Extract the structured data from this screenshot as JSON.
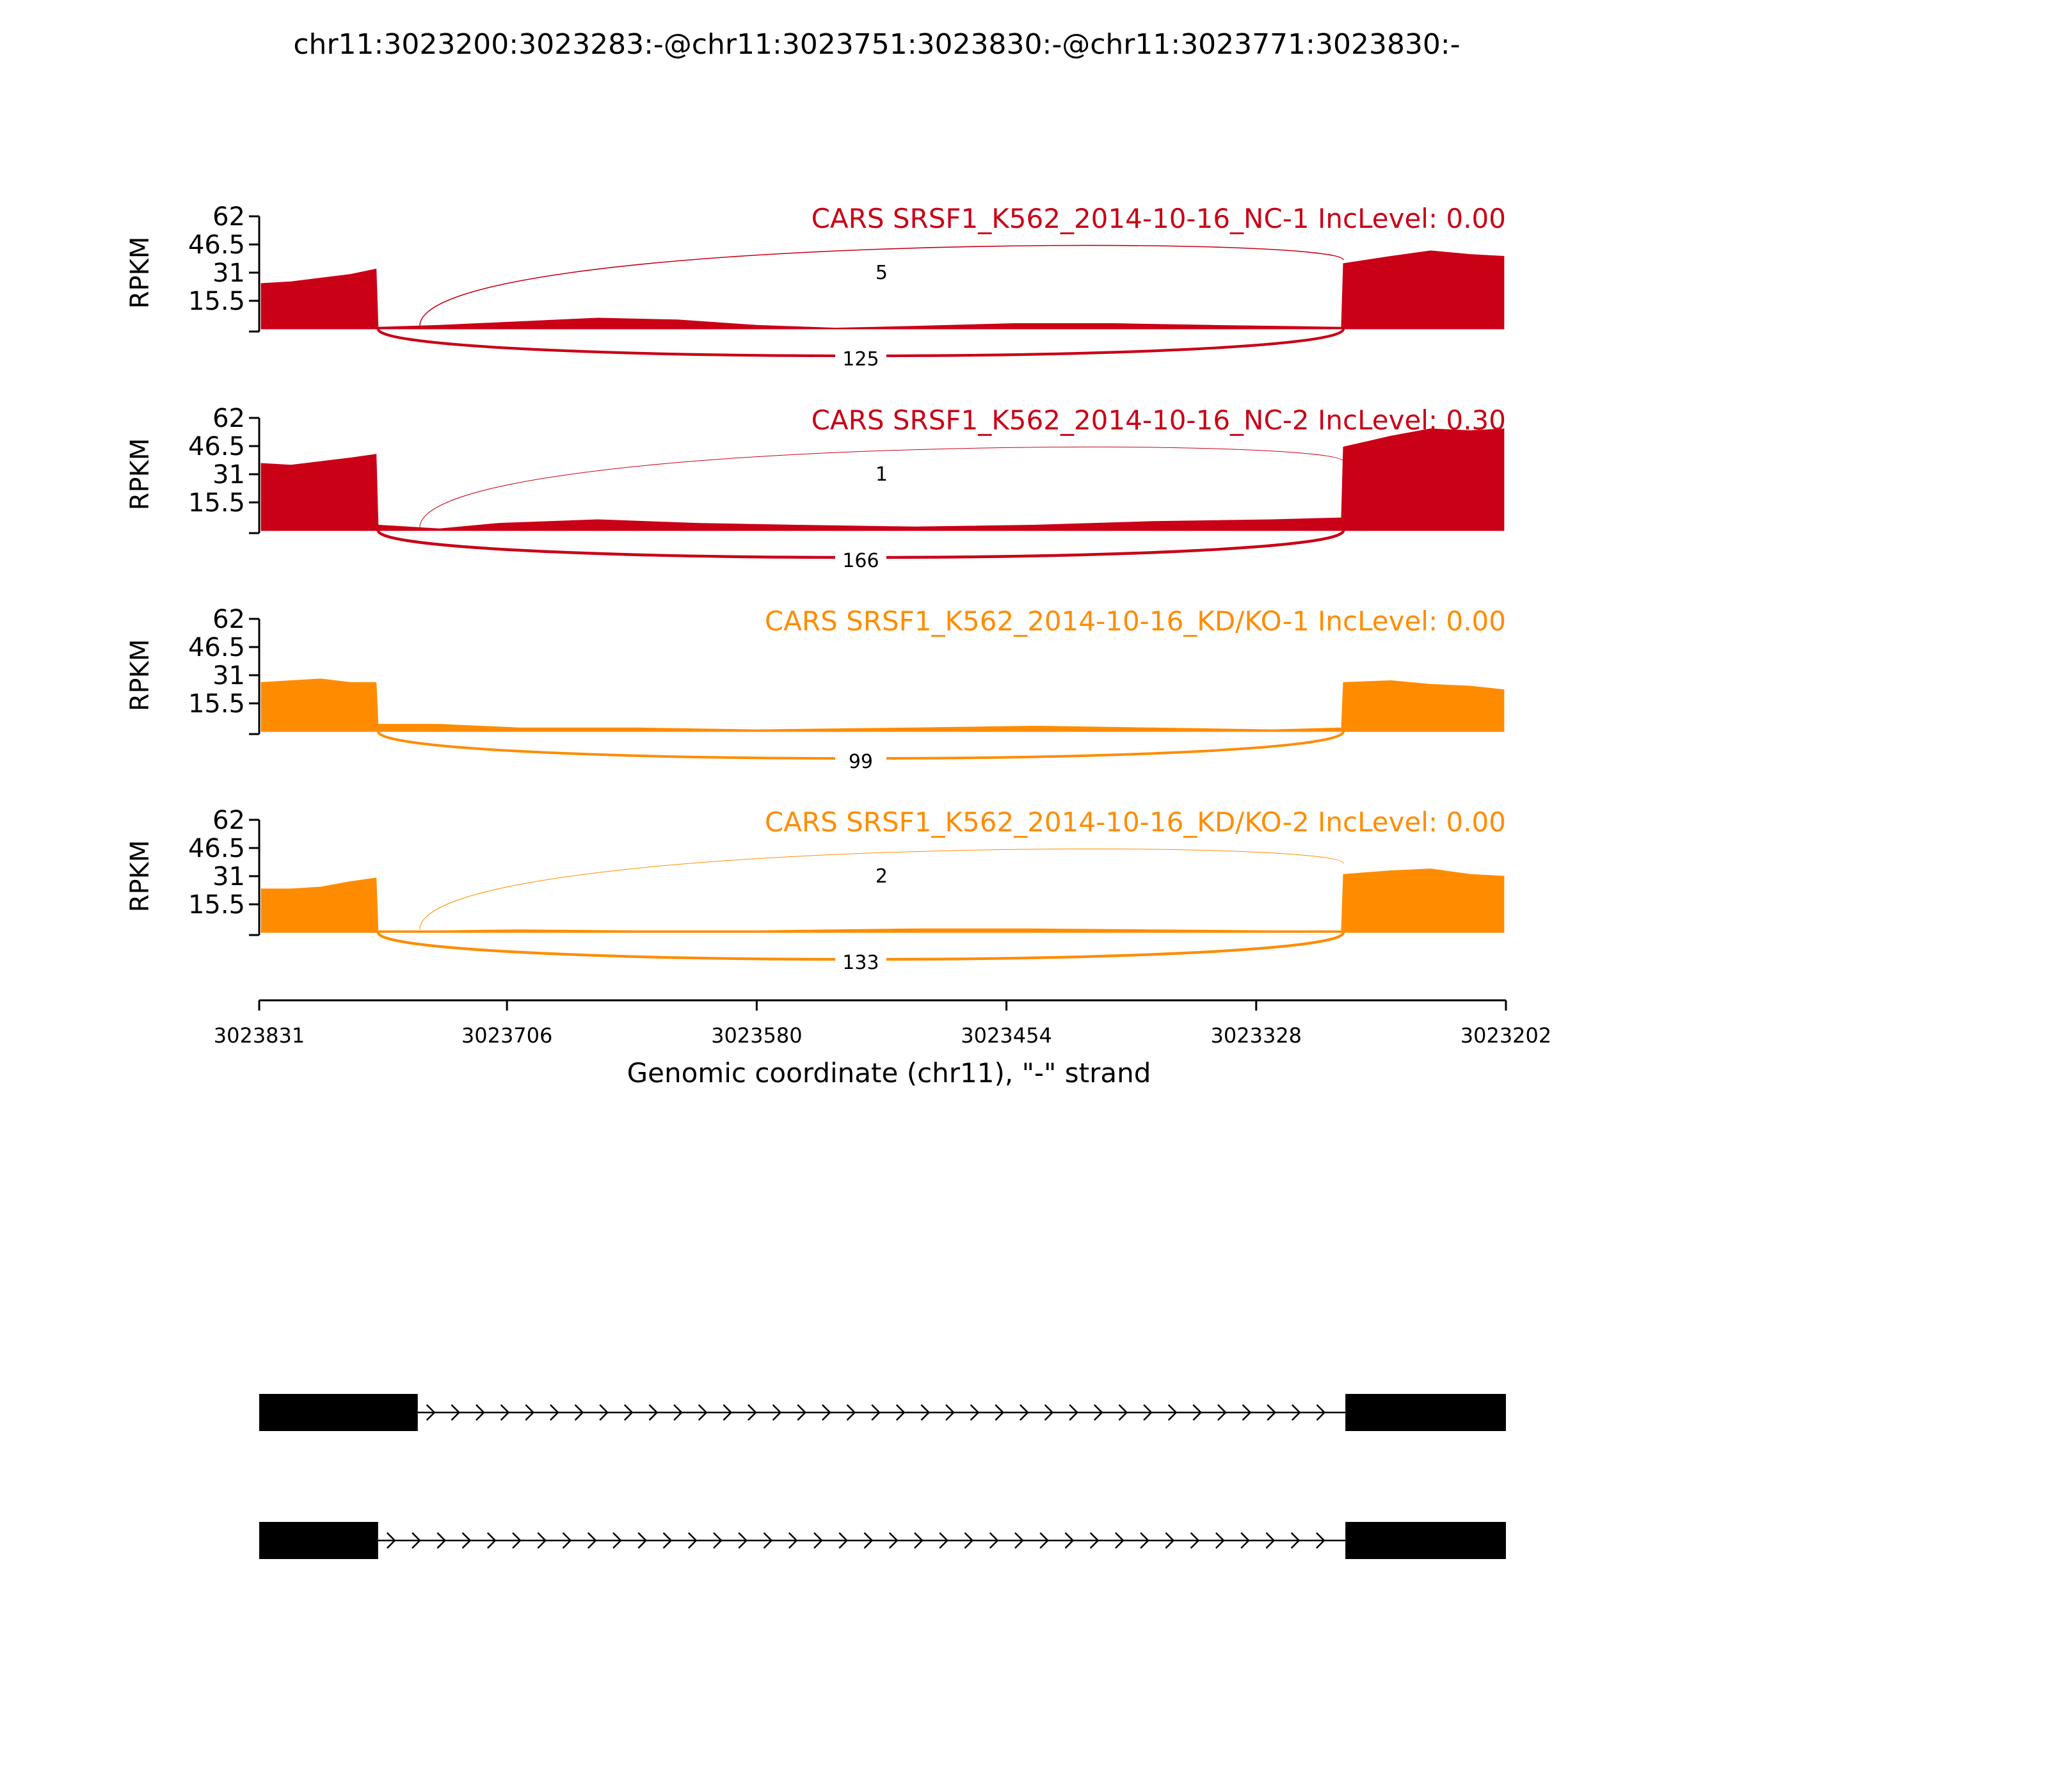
{
  "title": "chr11:3023200:3023283:-@chr11:3023751:3023830:-@chr11:3023771:3023830:-",
  "chart_data": {
    "type": "area",
    "ylabel": "RPKM",
    "xlabel": "Genomic coordinate (chr11), \"-\" strand",
    "ylim": [
      0,
      62
    ],
    "y_ticks": [
      "62",
      "46.5",
      "31",
      "15.5"
    ],
    "x_range": [
      3023831,
      3023202
    ],
    "x_ticks": [
      "3023831",
      "3023706",
      "3023580",
      "3023454",
      "3023328",
      "3023202"
    ],
    "colors": {
      "NC": "#c90016",
      "KD": "#ff8c00"
    },
    "tracks": [
      {
        "name": "CARS SRSF1_K562_2014-10-16_NC-1 IncLevel: 0.00",
        "color": "#c90016",
        "coverage": [
          {
            "x": 3023830,
            "y": 25
          },
          {
            "x": 3023815,
            "y": 26
          },
          {
            "x": 3023800,
            "y": 28
          },
          {
            "x": 3023785,
            "y": 30
          },
          {
            "x": 3023772,
            "y": 33
          },
          {
            "x": 3023771,
            "y": 1
          },
          {
            "x": 3023740,
            "y": 2
          },
          {
            "x": 3023700,
            "y": 4
          },
          {
            "x": 3023660,
            "y": 6
          },
          {
            "x": 3023620,
            "y": 5
          },
          {
            "x": 3023580,
            "y": 2
          },
          {
            "x": 3023540,
            "y": 0.5
          },
          {
            "x": 3023500,
            "y": 1.5
          },
          {
            "x": 3023450,
            "y": 3
          },
          {
            "x": 3023400,
            "y": 3
          },
          {
            "x": 3023350,
            "y": 2
          },
          {
            "x": 3023285,
            "y": 1
          },
          {
            "x": 3023284,
            "y": 36
          },
          {
            "x": 3023260,
            "y": 40
          },
          {
            "x": 3023240,
            "y": 43
          },
          {
            "x": 3023220,
            "y": 41
          },
          {
            "x": 3023203,
            "y": 40
          }
        ],
        "junctions": [
          {
            "label": "5",
            "count": 5,
            "side": "above",
            "from": 3023750,
            "to": 3023284
          },
          {
            "label": "125",
            "count": 125,
            "side": "below",
            "from": 3023771,
            "to": 3023284
          }
        ]
      },
      {
        "name": "CARS SRSF1_K562_2014-10-16_NC-2 IncLevel: 0.30",
        "color": "#c90016",
        "coverage": [
          {
            "x": 3023830,
            "y": 37
          },
          {
            "x": 3023815,
            "y": 36
          },
          {
            "x": 3023800,
            "y": 38
          },
          {
            "x": 3023785,
            "y": 40
          },
          {
            "x": 3023772,
            "y": 42
          },
          {
            "x": 3023771,
            "y": 3
          },
          {
            "x": 3023740,
            "y": 1
          },
          {
            "x": 3023710,
            "y": 4
          },
          {
            "x": 3023660,
            "y": 6
          },
          {
            "x": 3023610,
            "y": 4
          },
          {
            "x": 3023560,
            "y": 3
          },
          {
            "x": 3023500,
            "y": 2
          },
          {
            "x": 3023440,
            "y": 3
          },
          {
            "x": 3023380,
            "y": 5
          },
          {
            "x": 3023320,
            "y": 6
          },
          {
            "x": 3023285,
            "y": 7
          },
          {
            "x": 3023284,
            "y": 46
          },
          {
            "x": 3023260,
            "y": 52
          },
          {
            "x": 3023240,
            "y": 56
          },
          {
            "x": 3023220,
            "y": 55
          },
          {
            "x": 3023203,
            "y": 56
          }
        ],
        "junctions": [
          {
            "label": "1",
            "count": 1,
            "side": "above",
            "from": 3023750,
            "to": 3023284
          },
          {
            "label": "166",
            "count": 166,
            "side": "below",
            "from": 3023771,
            "to": 3023284
          }
        ]
      },
      {
        "name": "CARS SRSF1_K562_2014-10-16_KD/KO-1 IncLevel: 0.00",
        "color": "#ff8c00",
        "coverage": [
          {
            "x": 3023830,
            "y": 27
          },
          {
            "x": 3023815,
            "y": 28
          },
          {
            "x": 3023800,
            "y": 29
          },
          {
            "x": 3023785,
            "y": 27
          },
          {
            "x": 3023772,
            "y": 27
          },
          {
            "x": 3023771,
            "y": 4
          },
          {
            "x": 3023740,
            "y": 4
          },
          {
            "x": 3023700,
            "y": 2
          },
          {
            "x": 3023640,
            "y": 2
          },
          {
            "x": 3023580,
            "y": 1
          },
          {
            "x": 3023500,
            "y": 2
          },
          {
            "x": 3023440,
            "y": 3
          },
          {
            "x": 3023380,
            "y": 2
          },
          {
            "x": 3023320,
            "y": 1
          },
          {
            "x": 3023285,
            "y": 2
          },
          {
            "x": 3023284,
            "y": 27
          },
          {
            "x": 3023260,
            "y": 28
          },
          {
            "x": 3023240,
            "y": 26
          },
          {
            "x": 3023220,
            "y": 25
          },
          {
            "x": 3023203,
            "y": 23
          }
        ],
        "junctions": [
          {
            "label": "99",
            "count": 99,
            "side": "below",
            "from": 3023771,
            "to": 3023284
          }
        ]
      },
      {
        "name": "CARS SRSF1_K562_2014-10-16_KD/KO-2 IncLevel: 0.00",
        "color": "#ff8c00",
        "coverage": [
          {
            "x": 3023830,
            "y": 24
          },
          {
            "x": 3023815,
            "y": 24
          },
          {
            "x": 3023800,
            "y": 25
          },
          {
            "x": 3023785,
            "y": 28
          },
          {
            "x": 3023772,
            "y": 30
          },
          {
            "x": 3023771,
            "y": 1
          },
          {
            "x": 3023740,
            "y": 1
          },
          {
            "x": 3023700,
            "y": 1.5
          },
          {
            "x": 3023640,
            "y": 1
          },
          {
            "x": 3023580,
            "y": 1
          },
          {
            "x": 3023500,
            "y": 2
          },
          {
            "x": 3023440,
            "y": 2
          },
          {
            "x": 3023380,
            "y": 1.5
          },
          {
            "x": 3023320,
            "y": 1
          },
          {
            "x": 3023285,
            "y": 1
          },
          {
            "x": 3023284,
            "y": 32
          },
          {
            "x": 3023260,
            "y": 34
          },
          {
            "x": 3023240,
            "y": 35
          },
          {
            "x": 3023220,
            "y": 32
          },
          {
            "x": 3023203,
            "y": 31
          }
        ],
        "junctions": [
          {
            "label": "2",
            "count": 2,
            "side": "above",
            "from": 3023750,
            "to": 3023284
          },
          {
            "label": "133",
            "count": 133,
            "side": "below",
            "from": 3023771,
            "to": 3023284
          }
        ]
      }
    ],
    "isoforms": [
      {
        "exons": [
          [
            3023831,
            3023751
          ],
          [
            3023283,
            3023202
          ]
        ]
      },
      {
        "exons": [
          [
            3023831,
            3023771
          ],
          [
            3023283,
            3023202
          ]
        ]
      }
    ]
  }
}
